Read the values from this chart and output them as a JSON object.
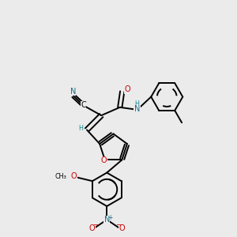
{
  "background_color": "#ebebeb",
  "bond_color": "#000000",
  "atom_colors": {
    "N": "#1a6b8a",
    "O": "#cc0000",
    "C": "#000000",
    "H": "#1a8a8a"
  },
  "figsize": [
    3.0,
    3.0
  ],
  "dpi": 100
}
